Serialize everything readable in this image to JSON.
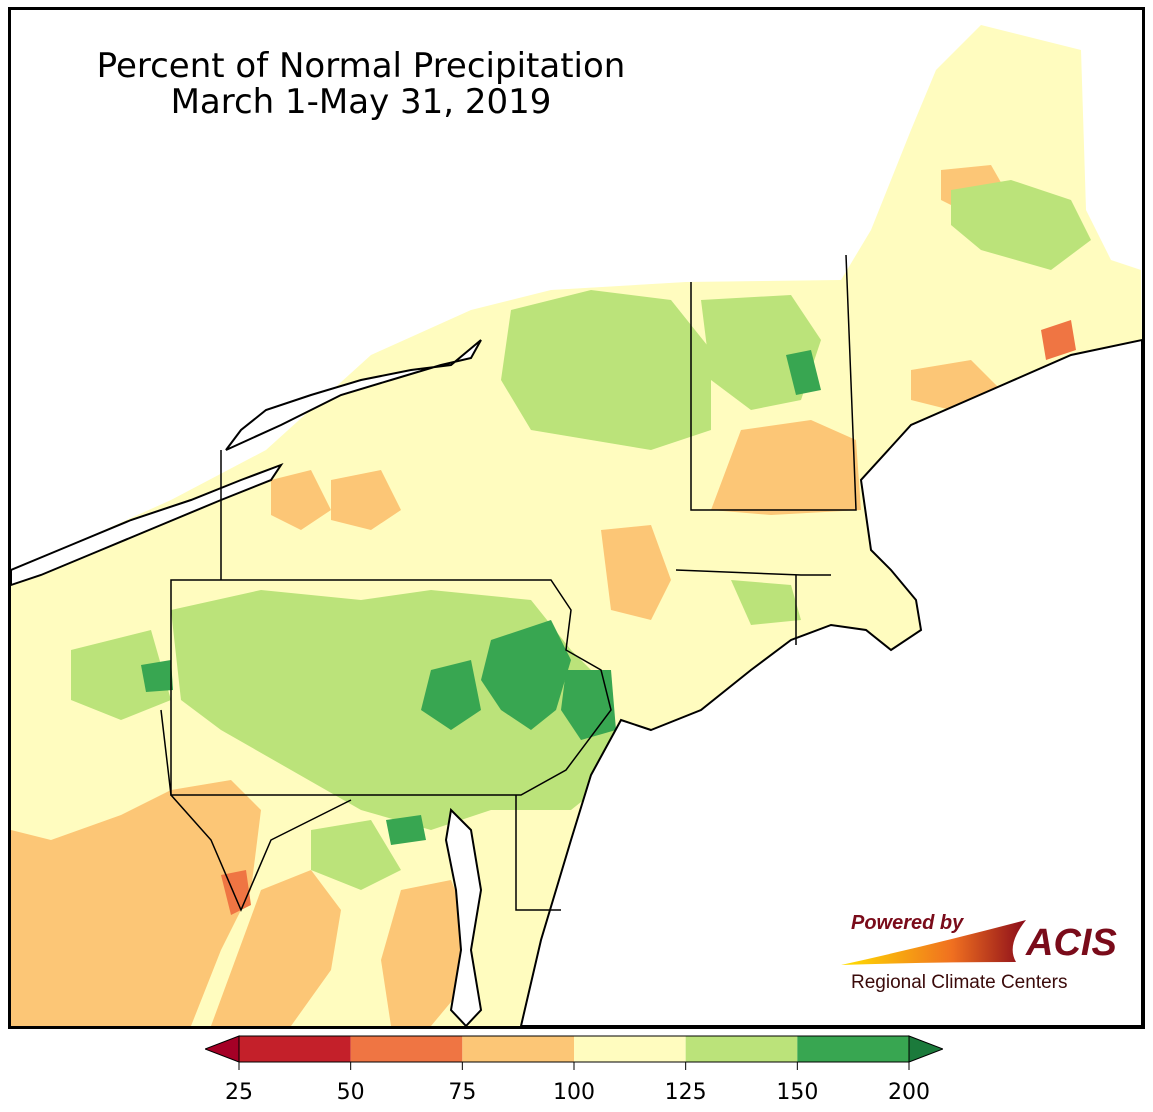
{
  "title": {
    "line1": "Percent of Normal Precipitation",
    "line2": "March 1-May 31, 2019"
  },
  "logo": {
    "powered_by": "Powered by",
    "name": "ACIS",
    "subtitle": "Regional Climate Centers"
  },
  "legend": {
    "ticks": [
      "25",
      "50",
      "75",
      "100",
      "125",
      "150",
      "200"
    ],
    "bins": [
      {
        "range": "25-50",
        "color": "#c4202a"
      },
      {
        "range": "50-75",
        "color": "#ef7543"
      },
      {
        "range": "75-100",
        "color": "#fcc676"
      },
      {
        "range": "100-125",
        "color": "#fffcbf"
      },
      {
        "range": "125-150",
        "color": "#bbe37a"
      },
      {
        "range": "150-200",
        "color": "#38a651"
      }
    ],
    "under_color": "#a50026",
    "over_color": "#1b7a3b"
  },
  "colors": {
    "background_land": "#fffcbf",
    "water": "#ffffff",
    "dry": "#fcc676",
    "very_dry": "#ef7543",
    "wet": "#bbe37a",
    "very_wet": "#38a651",
    "borders": "#000000"
  }
}
